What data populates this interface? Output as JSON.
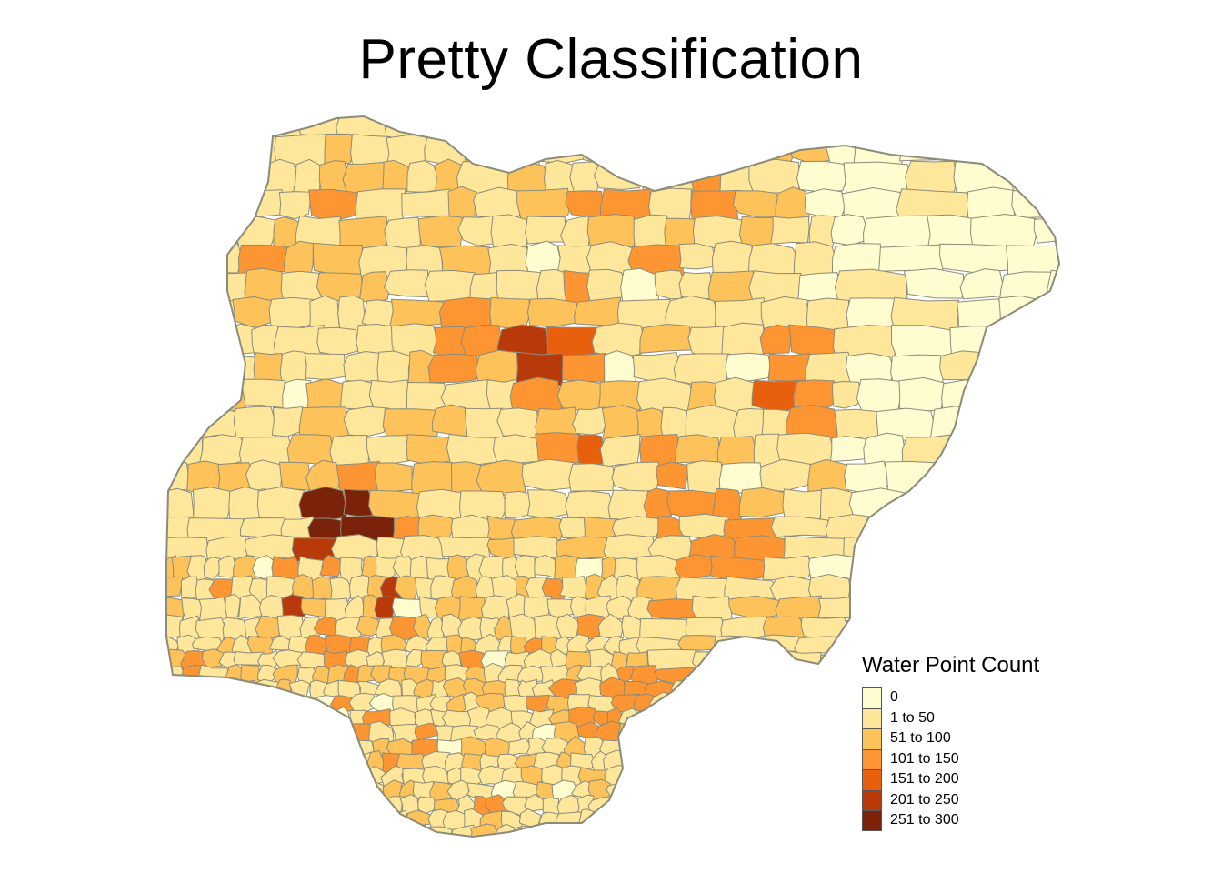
{
  "title": "Pretty Classification",
  "legend": {
    "title": "Water Point Count",
    "items": [
      {
        "label": "0",
        "color": "#fffcd0"
      },
      {
        "label": "1 to 50",
        "color": "#fee79b"
      },
      {
        "label": "51 to 100",
        "color": "#fdc25a"
      },
      {
        "label": "101 to 150",
        "color": "#fd9632"
      },
      {
        "label": "151 to 200",
        "color": "#e8600e"
      },
      {
        "label": "201 to 250",
        "color": "#b8390a"
      },
      {
        "label": "251 to 300",
        "color": "#7a230a"
      }
    ]
  },
  "colors": {
    "boundary": "#8c8c7a",
    "background": "#ffffff"
  }
}
